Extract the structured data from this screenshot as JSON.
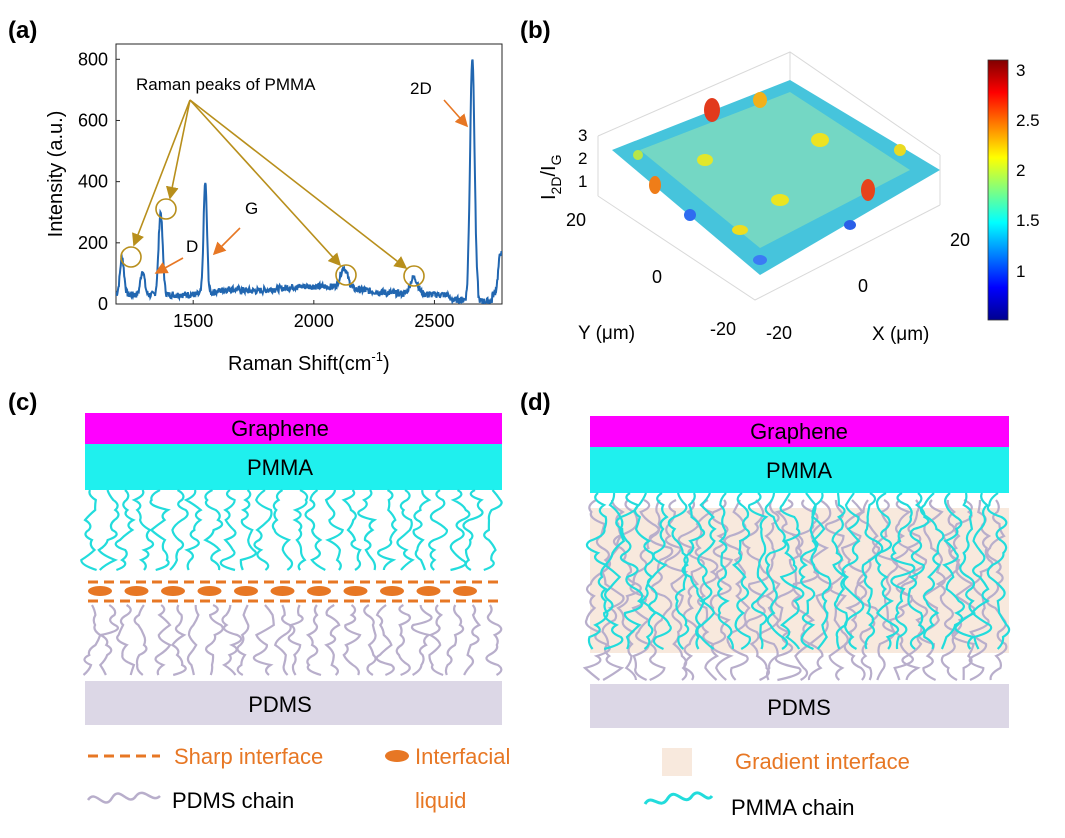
{
  "panels": {
    "a": {
      "tag": "(a)"
    },
    "b": {
      "tag": "(b)"
    },
    "c": {
      "tag": "(c)"
    },
    "d": {
      "tag": "(d)"
    }
  },
  "chart_data": [
    {
      "type": "line",
      "xlabel_base": "Raman Shift(cm",
      "xlabel_sup": "-1",
      "xlabel_tail": ")",
      "ylabel": "Intensity (a.u.)",
      "xlim": [
        1180,
        2780
      ],
      "ylim": [
        0,
        850
      ],
      "xticks": [
        1500,
        2000,
        2500
      ],
      "yticks": [
        0,
        200,
        400,
        600,
        800
      ],
      "color": "#2166b0",
      "peaks": [
        {
          "x": 1205,
          "y": 150
        },
        {
          "x": 1290,
          "y": 110
        },
        {
          "x": 1365,
          "y": 300
        },
        {
          "x": 1550,
          "y": 395
        },
        {
          "x": 2125,
          "y": 95
        },
        {
          "x": 2415,
          "y": 85
        },
        {
          "x": 2657,
          "y": 810
        },
        {
          "x": 2775,
          "y": 170
        }
      ],
      "annotations": {
        "pmma": "Raman peaks of PMMA",
        "d": "D",
        "g": "G",
        "twod": "2D"
      }
    },
    {
      "type": "surface",
      "zlabel_main": "I",
      "zlabel_sub1": "2D",
      "zlabel_sep": "/I",
      "zlabel_sub2": "G",
      "xlabel": "X (μm)",
      "ylabel": "Y (μm)",
      "xticks": [
        "-20",
        "0",
        "20"
      ],
      "yticks": [
        "-20",
        "0",
        "20"
      ],
      "zticks": [
        "1",
        "2",
        "3"
      ],
      "colorbar_ticks": [
        "1",
        "1.5",
        "2",
        "2.5",
        "3"
      ],
      "colormap": "jet"
    }
  ],
  "diagram_c": {
    "graphene": "Graphene",
    "pmma": "PMMA",
    "pdms": "PDMS",
    "legend": {
      "sharp": "Sharp interface",
      "liquid_1": "Interfacial",
      "liquid_2": "liquid",
      "chain": "PDMS chain"
    }
  },
  "diagram_d": {
    "graphene": "Graphene",
    "pmma": "PMMA",
    "pdms": "PDMS",
    "legend": {
      "gradient": "Gradient interface",
      "chain": "PMMA chain"
    }
  },
  "colors": {
    "graphene": "#ff00ff",
    "pmma": "#1ff0ee",
    "pdms": "#dcd7e6",
    "pdms_chain": "#b8aecb",
    "pmma_chain": "#22dcdc",
    "orange": "#e77724",
    "gradient": "#f8e9dd",
    "arrow_gold": "#b88f1c"
  }
}
